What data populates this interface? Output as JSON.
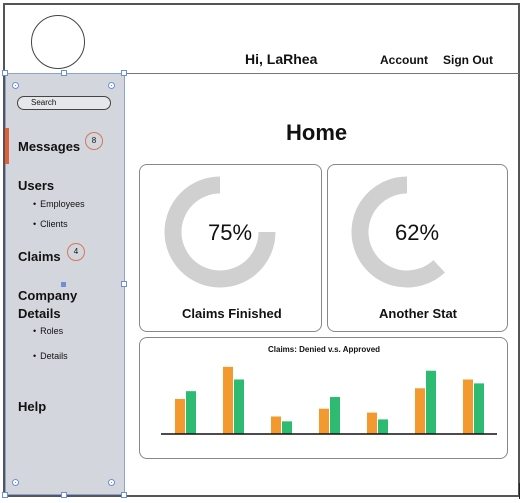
{
  "header": {
    "greeting": "Hi, LaRhea",
    "account_label": "Account",
    "signout_label": "Sign Out"
  },
  "sidebar": {
    "search_placeholder": "Search",
    "messages": {
      "label": "Messages",
      "badge": "8"
    },
    "users": {
      "label": "Users",
      "sub": [
        "Employees",
        "Clients"
      ]
    },
    "claims": {
      "label": "Claims",
      "badge": "4"
    },
    "company": {
      "label_line1": "Company",
      "label_line2": "Details",
      "sub": [
        "Roles",
        "Details"
      ]
    },
    "help": {
      "label": "Help"
    },
    "active_color": "#e0603a"
  },
  "main": {
    "title": "Home",
    "stat_cards": [
      {
        "value": "75%",
        "percent": 75,
        "label": "Claims Finished"
      },
      {
        "value": "62%",
        "percent": 62,
        "label": "Another Stat"
      }
    ]
  },
  "colors": {
    "gauge": "#d0d0d0",
    "denied": "#f39a2e",
    "approved": "#2dbb72",
    "sidebar_bg": "#d3d6dc"
  },
  "chart_data": {
    "type": "bar",
    "title": "Claims: Denied v.s. Approved",
    "categories": [
      "",
      "",
      "",
      "",
      "",
      "",
      ""
    ],
    "series": [
      {
        "values": [
          36,
          69,
          18,
          26,
          22,
          47,
          56
        ]
      },
      {
        "values": [
          44,
          56,
          13,
          38,
          15,
          65,
          52
        ]
      }
    ],
    "ylim": [
      0,
      75
    ],
    "grid": false,
    "legend": "none"
  }
}
